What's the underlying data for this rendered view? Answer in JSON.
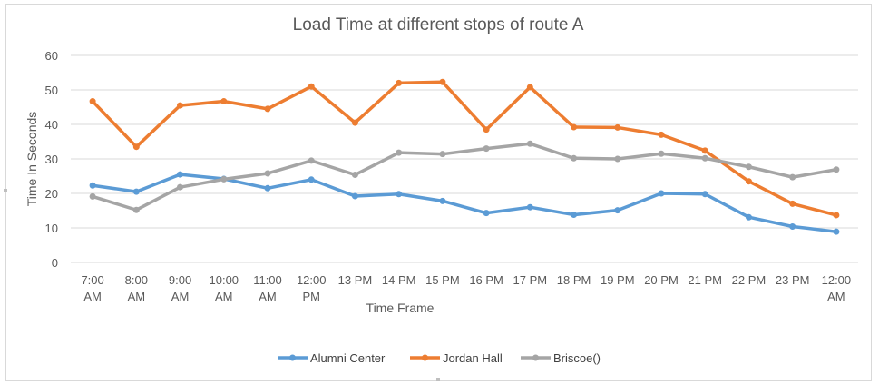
{
  "chart_data": {
    "type": "line",
    "title": "Load Time at different stops of route A",
    "xlabel": "Time Frame",
    "ylabel": "Time In Seconds",
    "ylim": [
      0,
      60
    ],
    "yticks": [
      0,
      10,
      20,
      30,
      40,
      50,
      60
    ],
    "grid": true,
    "legend": "bottom",
    "categories": [
      [
        "7:00",
        "AM"
      ],
      [
        "8:00",
        "AM"
      ],
      [
        "9:00",
        "AM"
      ],
      [
        "10:00",
        "AM"
      ],
      [
        "11:00",
        "AM"
      ],
      [
        "12:00",
        "PM"
      ],
      [
        "13 PM"
      ],
      [
        "14 PM"
      ],
      [
        "15 PM"
      ],
      [
        "16 PM"
      ],
      [
        "17 PM"
      ],
      [
        "18 PM"
      ],
      [
        "19 PM"
      ],
      [
        "20 PM"
      ],
      [
        "21 PM"
      ],
      [
        "22 PM"
      ],
      [
        "23 PM"
      ],
      [
        "12:00",
        "AM"
      ]
    ],
    "series": [
      {
        "name": "Alumni Center",
        "color": "#5b9bd5",
        "values": [
          22.3,
          20.5,
          25.5,
          24.2,
          21.5,
          24.0,
          19.2,
          19.8,
          17.8,
          14.3,
          16.0,
          13.8,
          15.1,
          20.0,
          19.8,
          13.1,
          10.4,
          8.9
        ]
      },
      {
        "name": "Jordan Hall",
        "color": "#ed7d31",
        "values": [
          46.7,
          33.5,
          45.5,
          46.7,
          44.5,
          51.0,
          40.5,
          52.0,
          52.3,
          38.5,
          50.8,
          39.2,
          39.1,
          37.0,
          32.4,
          23.5,
          17.0,
          13.7
        ]
      },
      {
        "name": "Briscoe()",
        "color": "#a5a5a5",
        "values": [
          19.1,
          15.2,
          21.8,
          24.1,
          25.8,
          29.5,
          25.4,
          31.8,
          31.4,
          33.0,
          34.4,
          30.2,
          30.0,
          31.5,
          30.2,
          27.7,
          24.7,
          26.9
        ]
      }
    ]
  }
}
